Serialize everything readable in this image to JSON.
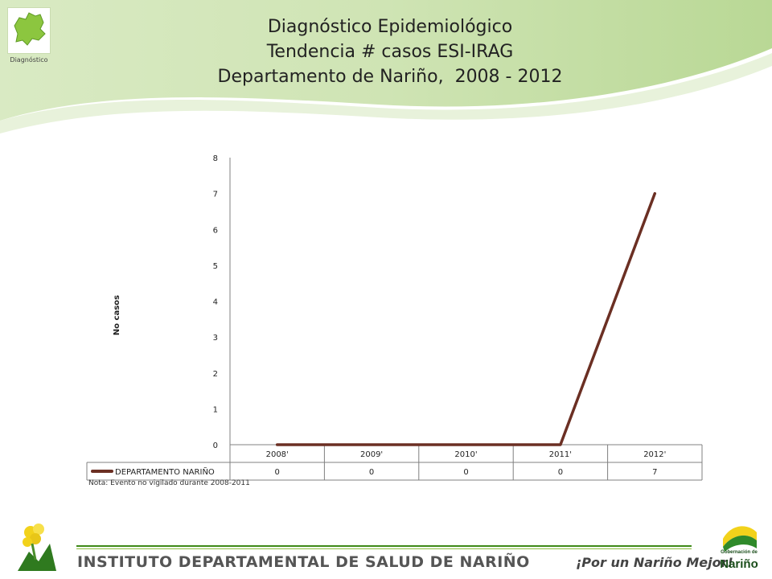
{
  "header": {
    "logo_caption": "Diagnóstico",
    "title_lines": [
      "Diagnóstico Epidemiológico",
      "Tendencia # casos ESI-IRAG",
      "Departamento de Nariño,  2008 - 2012"
    ]
  },
  "chart_data": {
    "type": "line",
    "categories": [
      "2008'",
      "2009'",
      "2010'",
      "2011'",
      "2012'"
    ],
    "series": [
      {
        "name": "DEPARTAMENTO NARIÑO",
        "values": [
          0,
          0,
          0,
          0,
          7
        ],
        "color": "#6b2f23"
      }
    ],
    "ylabel": "No casos",
    "ylim": [
      0,
      8
    ],
    "yticks": [
      0,
      1,
      2,
      3,
      4,
      5,
      6,
      7,
      8
    ],
    "data_table": true,
    "legend_placement": "data-table-row",
    "grid": false
  },
  "note": "Nota: Evento no vigilado durante 2008-2011",
  "footer": {
    "institute": "INSTITUTO DEPARTAMENTAL DE SALUD DE NARIÑO",
    "slogan": "¡Por un Nariño Mejor!",
    "gob_small": "Gobernación de",
    "gob_big": "Nariño"
  },
  "colors": {
    "series_line": "#6b2f23",
    "header_green": "#b8d98f",
    "footer_green": "#3f8a1a"
  },
  "icons": {
    "header_logo": "department-map-icon",
    "footer_left": "flower-emblem-icon",
    "footer_right": "flag-emblem-icon"
  }
}
